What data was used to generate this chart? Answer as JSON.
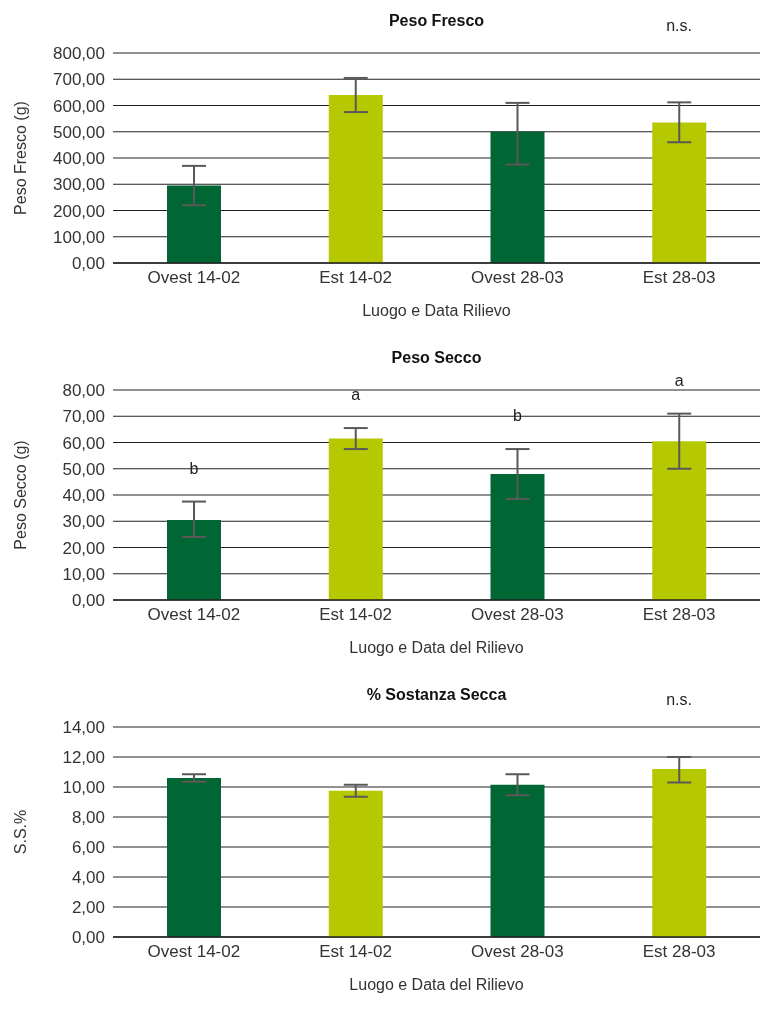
{
  "chart_data": [
    {
      "type": "bar",
      "title": "Peso Fresco",
      "xlabel": "Luogo e Data Rilievo",
      "ylabel": "Peso Fresco (g)",
      "categories": [
        "Ovest 14-02",
        "Est 14-02",
        "Ovest 28-03",
        "Est 28-03"
      ],
      "values": [
        295,
        640,
        500,
        535
      ],
      "errors": [
        [
          220,
          370
        ],
        [
          575,
          705
        ],
        [
          375,
          610
        ],
        [
          460,
          612
        ]
      ],
      "colors": [
        "#006633",
        "#b5c800",
        "#006633",
        "#b5c800"
      ],
      "ylim": [
        0,
        800
      ],
      "yticks": [
        {
          "value": 0,
          "label": "0,00"
        },
        {
          "value": 100,
          "label": "100,00"
        },
        {
          "value": 200,
          "label": "200,00"
        },
        {
          "value": 300,
          "label": "300,00"
        },
        {
          "value": 400,
          "label": "400,00"
        },
        {
          "value": 500,
          "label": "500,00"
        },
        {
          "value": 600,
          "label": "600,00"
        },
        {
          "value": 700,
          "label": "700,00"
        },
        {
          "value": 800,
          "label": "800,00"
        }
      ],
      "grid": "y",
      "legend": false,
      "annotations": [
        "n.s."
      ]
    },
    {
      "type": "bar",
      "title": "Peso Secco",
      "xlabel": "Luogo e Data del Rilievo",
      "ylabel": "Peso Secco (g)",
      "categories": [
        "Ovest 14-02",
        "Est 14-02",
        "Ovest 28-03",
        "Est 28-03"
      ],
      "values": [
        30.5,
        61.5,
        48,
        60.5
      ],
      "errors": [
        [
          24,
          37.5
        ],
        [
          57.5,
          65.5
        ],
        [
          38.5,
          57.5
        ],
        [
          50,
          71
        ]
      ],
      "colors": [
        "#006633",
        "#b5c800",
        "#006633",
        "#b5c800"
      ],
      "ylim": [
        0,
        80
      ],
      "yticks": [
        {
          "value": 0,
          "label": "0,00"
        },
        {
          "value": 10,
          "label": "10,00"
        },
        {
          "value": 20,
          "label": "20,00"
        },
        {
          "value": 30,
          "label": "30,00"
        },
        {
          "value": 40,
          "label": "40,00"
        },
        {
          "value": 50,
          "label": "50,00"
        },
        {
          "value": 60,
          "label": "60,00"
        },
        {
          "value": 70,
          "label": "70,00"
        },
        {
          "value": 80,
          "label": "80,00"
        }
      ],
      "grid": "y",
      "legend": false,
      "annotations": [
        "b",
        "a",
        "b",
        "a"
      ]
    },
    {
      "type": "bar",
      "title": "% Sostanza Secca",
      "xlabel": "Luogo e Data del Rilievo",
      "ylabel": "S.S.%",
      "categories": [
        "Ovest 14-02",
        "Est 14-02",
        "Ovest 28-03",
        "Est 28-03"
      ],
      "values": [
        10.6,
        9.75,
        10.15,
        11.2
      ],
      "errors": [
        [
          10.35,
          10.85
        ],
        [
          9.35,
          10.15
        ],
        [
          9.45,
          10.85
        ],
        [
          10.3,
          12.0
        ]
      ],
      "colors": [
        "#006633",
        "#b5c800",
        "#006633",
        "#b5c800"
      ],
      "ylim": [
        0,
        14
      ],
      "yticks": [
        {
          "value": 0,
          "label": "0,00"
        },
        {
          "value": 2,
          "label": "2,00"
        },
        {
          "value": 4,
          "label": "4,00"
        },
        {
          "value": 6,
          "label": "6,00"
        },
        {
          "value": 8,
          "label": "8,00"
        },
        {
          "value": 10,
          "label": "10,00"
        },
        {
          "value": 12,
          "label": "12,00"
        },
        {
          "value": 14,
          "label": "14,00"
        }
      ],
      "grid": "y",
      "legend": false,
      "annotations": [
        "n.s."
      ]
    }
  ]
}
